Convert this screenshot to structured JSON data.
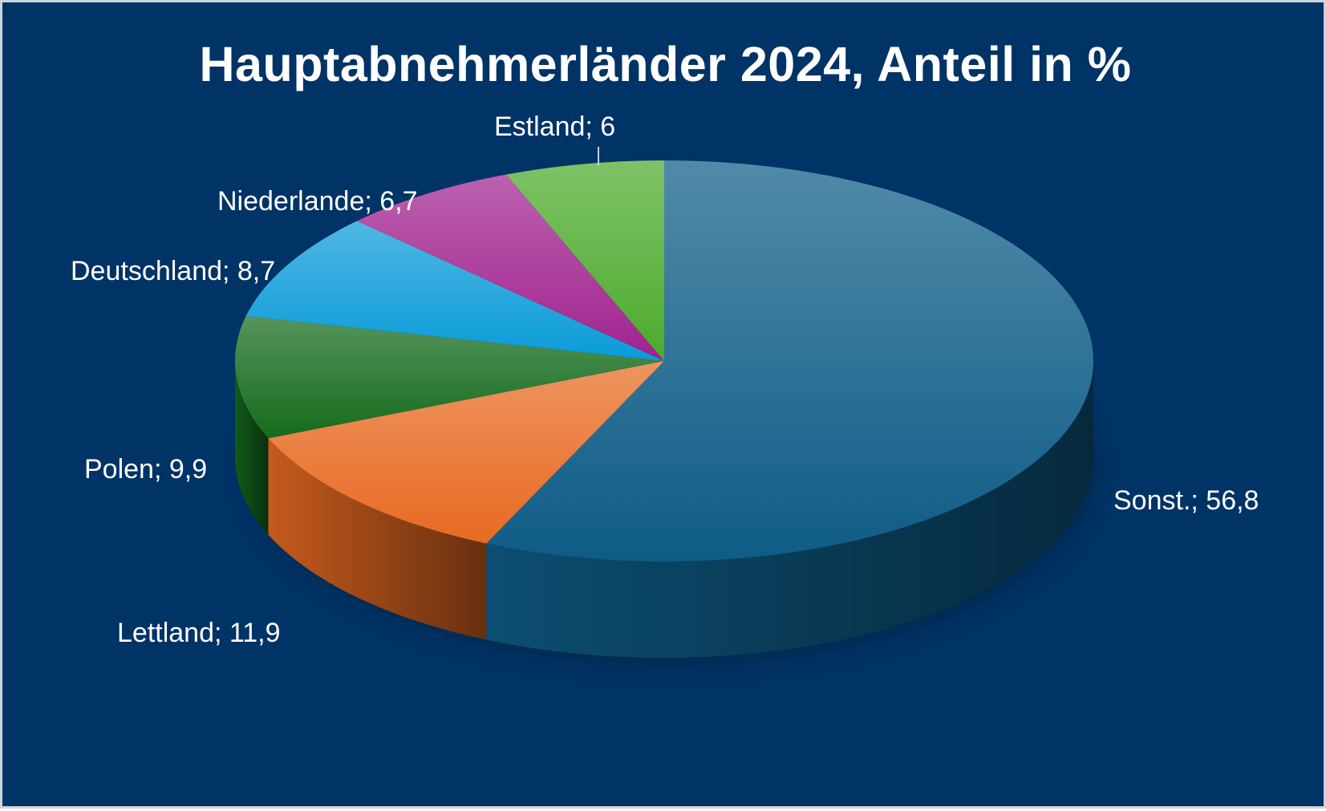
{
  "chart_data": {
    "type": "pie",
    "style": "3d",
    "title": "Hauptabnehmerländer 2024, Anteil in %",
    "slices": [
      {
        "name": "Sonst.",
        "value": 56.8,
        "label": "Sonst.; 56,8",
        "color": "#0E5C86"
      },
      {
        "name": "Lettland",
        "value": 11.9,
        "label": "Lettland; 11,9",
        "color": "#E86A22"
      },
      {
        "name": "Polen",
        "value": 9.9,
        "label": "Polen; 9,9",
        "color": "#146B1C"
      },
      {
        "name": "Deutschland",
        "value": 8.7,
        "label": "Deutschland; 8,7",
        "color": "#0A9BD8"
      },
      {
        "name": "Niederlande",
        "value": 6.7,
        "label": "Niederlande; 6,7",
        "color": "#A0238F"
      },
      {
        "name": "Estland",
        "value": 6,
        "label": "Estland; 6",
        "color": "#4CAA2C"
      }
    ],
    "legend": "none"
  },
  "colors": {
    "background": "#003366",
    "border": "#d0d4da",
    "text": "#ffffff"
  }
}
